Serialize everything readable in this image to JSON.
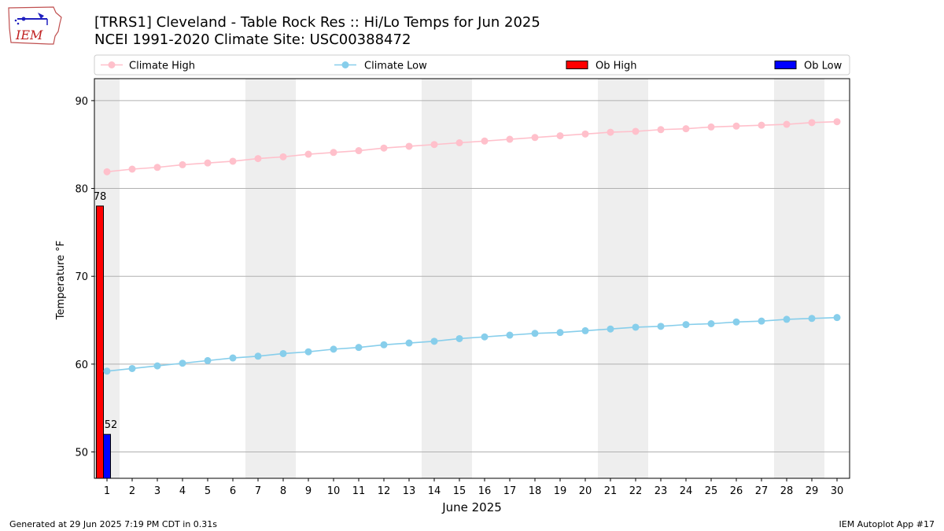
{
  "header": {
    "title_line1": "[TRRS1] Cleveland - Table Rock Res :: Hi/Lo Temps for Jun 2025",
    "title_line2": "NCEI 1991-2020 Climate Site: USC00388472",
    "logo_text": "IEM"
  },
  "footer": {
    "left": "Generated at 29 Jun 2025 7:19 PM CDT in 0.31s",
    "right": "IEM Autoplot App #17"
  },
  "colors": {
    "climate_high": "#ffc0cb",
    "climate_low": "#87ceeb",
    "ob_high": "#ff0000",
    "ob_low": "#0000ff",
    "weekend_shade": "#eeeeee",
    "grid": "#b0b0b0"
  },
  "chart_data": {
    "type": "line",
    "xlabel": "June 2025",
    "ylabel": "Temperature °F",
    "xlim": [
      0.5,
      30.5
    ],
    "ylim": [
      47,
      92.5
    ],
    "x": [
      1,
      2,
      3,
      4,
      5,
      6,
      7,
      8,
      9,
      10,
      11,
      12,
      13,
      14,
      15,
      16,
      17,
      18,
      19,
      20,
      21,
      22,
      23,
      24,
      25,
      26,
      27,
      28,
      29,
      30
    ],
    "x_ticks": [
      "1",
      "2",
      "3",
      "4",
      "5",
      "6",
      "7",
      "8",
      "9",
      "10",
      "11",
      "12",
      "13",
      "14",
      "15",
      "16",
      "17",
      "18",
      "19",
      "20",
      "21",
      "22",
      "23",
      "24",
      "25",
      "26",
      "27",
      "28",
      "29",
      "30"
    ],
    "y_ticks": [
      50,
      60,
      70,
      80,
      90
    ],
    "y_tick_labels": [
      "50",
      "60",
      "70",
      "80",
      "90"
    ],
    "grid": "horizontal",
    "legend_position": "top",
    "weekend_spans": [
      [
        0.5,
        1.5
      ],
      [
        6.5,
        8.5
      ],
      [
        13.5,
        15.5
      ],
      [
        20.5,
        22.5
      ],
      [
        27.5,
        29.5
      ]
    ],
    "series": [
      {
        "name": "Climate High",
        "kind": "line",
        "values": [
          81.9,
          82.2,
          82.4,
          82.7,
          82.9,
          83.1,
          83.4,
          83.6,
          83.9,
          84.1,
          84.3,
          84.6,
          84.8,
          85.0,
          85.2,
          85.4,
          85.6,
          85.8,
          86.0,
          86.2,
          86.4,
          86.5,
          86.7,
          86.8,
          87.0,
          87.1,
          87.2,
          87.3,
          87.5,
          87.6
        ]
      },
      {
        "name": "Climate Low",
        "kind": "line",
        "values": [
          59.2,
          59.5,
          59.8,
          60.1,
          60.4,
          60.7,
          60.9,
          61.2,
          61.4,
          61.7,
          61.9,
          62.2,
          62.4,
          62.6,
          62.9,
          63.1,
          63.3,
          63.5,
          63.6,
          63.8,
          64.0,
          64.2,
          64.3,
          64.5,
          64.6,
          64.8,
          64.9,
          65.1,
          65.2,
          65.3
        ]
      },
      {
        "name": "Ob High",
        "kind": "bar",
        "x": [
          1
        ],
        "values": [
          78
        ],
        "labels": [
          "78"
        ]
      },
      {
        "name": "Ob Low",
        "kind": "bar",
        "x": [
          1
        ],
        "values": [
          52
        ],
        "labels": [
          "52"
        ]
      }
    ]
  }
}
